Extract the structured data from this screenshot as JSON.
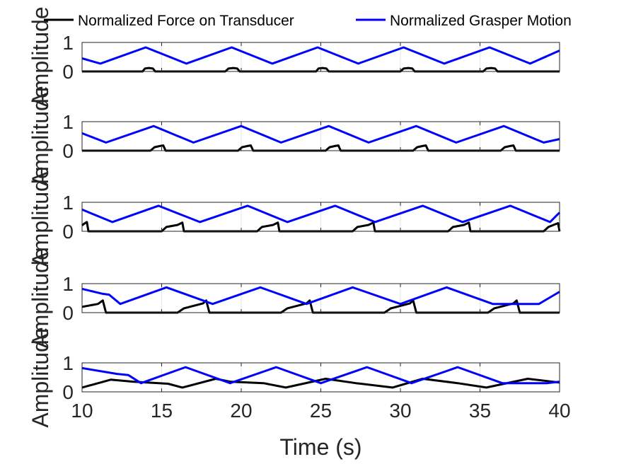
{
  "legend": {
    "position": "top",
    "entries": [
      {
        "label": "Normalized Force on Transducer",
        "color": "#000000"
      },
      {
        "label": "Normalized Grasper Motion",
        "color": "#0000ff"
      }
    ]
  },
  "chart_data": [
    {
      "type": "line",
      "ylabel": "Amplitude",
      "xlim": [
        10,
        40
      ],
      "ylim": [
        0,
        1
      ],
      "yticks": [
        0,
        1
      ],
      "grid": true,
      "series": [
        {
          "name": "Normalized Force on Transducer",
          "color": "#000000",
          "x": [
            10.0,
            13.8,
            13.95,
            14.2,
            14.45,
            14.6,
            19.0,
            19.2,
            19.5,
            19.75,
            19.9,
            24.7,
            24.85,
            25.1,
            25.35,
            25.5,
            30.0,
            30.2,
            30.5,
            30.75,
            30.9,
            35.2,
            35.4,
            35.7,
            35.95,
            36.1,
            40.0
          ],
          "y": [
            0.0,
            0.0,
            0.1,
            0.12,
            0.1,
            0.0,
            0.0,
            0.1,
            0.12,
            0.1,
            0.0,
            0.0,
            0.1,
            0.12,
            0.1,
            0.0,
            0.0,
            0.1,
            0.12,
            0.1,
            0.0,
            0.0,
            0.1,
            0.12,
            0.1,
            0.0,
            0.0
          ]
        },
        {
          "name": "Normalized Grasper Motion",
          "color": "#0000ff",
          "x": [
            10.0,
            11.15,
            14.0,
            16.55,
            19.4,
            21.95,
            24.8,
            27.35,
            30.2,
            32.75,
            35.6,
            38.15,
            40.0
          ],
          "y": [
            0.45,
            0.27,
            0.83,
            0.27,
            0.83,
            0.27,
            0.83,
            0.27,
            0.83,
            0.27,
            0.83,
            0.27,
            0.72
          ]
        }
      ]
    },
    {
      "type": "line",
      "ylabel": "Amplitude",
      "xlim": [
        10,
        40
      ],
      "ylim": [
        0,
        1
      ],
      "yticks": [
        0,
        1
      ],
      "grid": true,
      "series": [
        {
          "name": "Normalized Force on Transducer",
          "color": "#000000",
          "x": [
            10.0,
            14.3,
            14.55,
            14.9,
            15.1,
            15.25,
            19.8,
            20.05,
            20.4,
            20.6,
            20.75,
            25.3,
            25.55,
            25.9,
            26.1,
            26.25,
            30.8,
            31.05,
            31.4,
            31.6,
            31.75,
            36.3,
            36.55,
            36.9,
            37.1,
            37.25,
            40.0
          ],
          "y": [
            0.0,
            0.0,
            0.12,
            0.16,
            0.18,
            0.0,
            0.0,
            0.12,
            0.16,
            0.18,
            0.0,
            0.0,
            0.12,
            0.16,
            0.18,
            0.0,
            0.0,
            0.12,
            0.16,
            0.18,
            0.0,
            0.0,
            0.12,
            0.16,
            0.18,
            0.0,
            0.0
          ]
        },
        {
          "name": "Normalized Grasper Motion",
          "color": "#0000ff",
          "x": [
            10.0,
            11.5,
            14.5,
            17.0,
            20.0,
            22.5,
            25.5,
            28.0,
            31.0,
            33.5,
            36.5,
            39.0,
            40.0
          ],
          "y": [
            0.6,
            0.28,
            0.85,
            0.28,
            0.85,
            0.28,
            0.85,
            0.28,
            0.85,
            0.28,
            0.85,
            0.28,
            0.4
          ]
        }
      ]
    },
    {
      "type": "line",
      "ylabel": "Amplitude",
      "xlim": [
        10,
        40
      ],
      "ylim": [
        0,
        1
      ],
      "yticks": [
        0,
        1
      ],
      "grid": true,
      "series": [
        {
          "name": "Normalized Force on Transducer",
          "color": "#000000",
          "x": [
            10.0,
            10.1,
            10.3,
            10.4,
            15.0,
            15.3,
            16.0,
            16.3,
            16.4,
            21.0,
            21.3,
            22.0,
            22.3,
            22.4,
            27.0,
            27.3,
            28.0,
            28.3,
            28.4,
            33.0,
            33.3,
            34.0,
            34.3,
            34.4,
            39.0,
            39.3,
            39.9,
            40.0
          ],
          "y": [
            0.2,
            0.25,
            0.32,
            0.0,
            0.0,
            0.15,
            0.22,
            0.3,
            0.0,
            0.0,
            0.15,
            0.22,
            0.3,
            0.0,
            0.0,
            0.15,
            0.22,
            0.3,
            0.0,
            0.0,
            0.15,
            0.22,
            0.3,
            0.0,
            0.0,
            0.15,
            0.28,
            0.0
          ]
        },
        {
          "name": "Normalized Grasper Motion",
          "color": "#0000ff",
          "x": [
            10.0,
            11.9,
            14.8,
            17.4,
            20.4,
            22.9,
            25.9,
            28.4,
            31.4,
            33.9,
            36.9,
            39.4,
            40.0
          ],
          "y": [
            0.75,
            0.32,
            0.88,
            0.32,
            0.88,
            0.32,
            0.88,
            0.32,
            0.88,
            0.32,
            0.88,
            0.32,
            0.65
          ]
        }
      ]
    },
    {
      "type": "line",
      "ylabel": "Amplitude",
      "xlim": [
        10,
        40
      ],
      "ylim": [
        0,
        1
      ],
      "yticks": [
        0,
        1
      ],
      "grid": true,
      "series": [
        {
          "name": "Normalized Force on Transducer",
          "color": "#000000",
          "x": [
            10.0,
            11.0,
            11.3,
            11.5,
            16.0,
            16.4,
            17.6,
            17.8,
            18.0,
            22.5,
            22.9,
            24.1,
            24.3,
            24.5,
            29.0,
            29.4,
            30.6,
            30.8,
            31.0,
            35.5,
            35.9,
            37.1,
            37.3,
            37.5,
            40.0
          ],
          "y": [
            0.2,
            0.3,
            0.42,
            0.0,
            0.0,
            0.15,
            0.32,
            0.42,
            0.0,
            0.0,
            0.15,
            0.32,
            0.42,
            0.0,
            0.0,
            0.15,
            0.32,
            0.42,
            0.0,
            0.0,
            0.15,
            0.32,
            0.42,
            0.0,
            0.0
          ]
        },
        {
          "name": "Normalized Grasper Motion",
          "color": "#0000ff",
          "x": [
            10.0,
            11.3,
            11.7,
            12.4,
            15.3,
            18.2,
            21.2,
            24.1,
            27.0,
            30.0,
            32.9,
            35.8,
            38.7,
            40.0
          ],
          "y": [
            0.82,
            0.65,
            0.62,
            0.3,
            0.87,
            0.3,
            0.87,
            0.3,
            0.87,
            0.3,
            0.87,
            0.3,
            0.3,
            0.72
          ]
        }
      ]
    },
    {
      "type": "line",
      "ylabel": "Amplitude",
      "xlabel": "Time (s)",
      "xlim": [
        10,
        40
      ],
      "ylim": [
        0,
        1
      ],
      "yticks": [
        0,
        1
      ],
      "xticks": [
        10,
        15,
        20,
        25,
        30,
        35,
        40
      ],
      "grid": true,
      "series": [
        {
          "name": "Normalized Force on Transducer",
          "color": "#000000",
          "x": [
            10.0,
            11.8,
            13.2,
            15.4,
            16.3,
            18.4,
            19.3,
            21.4,
            22.8,
            25.3,
            27.2,
            29.5,
            31.4,
            33.6,
            35.4,
            38.0,
            40.0
          ],
          "y": [
            0.15,
            0.42,
            0.35,
            0.28,
            0.15,
            0.45,
            0.35,
            0.3,
            0.15,
            0.45,
            0.3,
            0.15,
            0.45,
            0.3,
            0.15,
            0.45,
            0.32
          ]
        },
        {
          "name": "Normalized Grasper Motion",
          "color": "#0000ff",
          "x": [
            10.0,
            12.2,
            12.9,
            13.7,
            16.5,
            19.3,
            22.2,
            25.0,
            27.9,
            30.7,
            33.6,
            36.4,
            39.2,
            40.0
          ],
          "y": [
            0.82,
            0.62,
            0.58,
            0.3,
            0.85,
            0.3,
            0.85,
            0.3,
            0.85,
            0.3,
            0.85,
            0.3,
            0.3,
            0.35
          ]
        }
      ]
    }
  ]
}
